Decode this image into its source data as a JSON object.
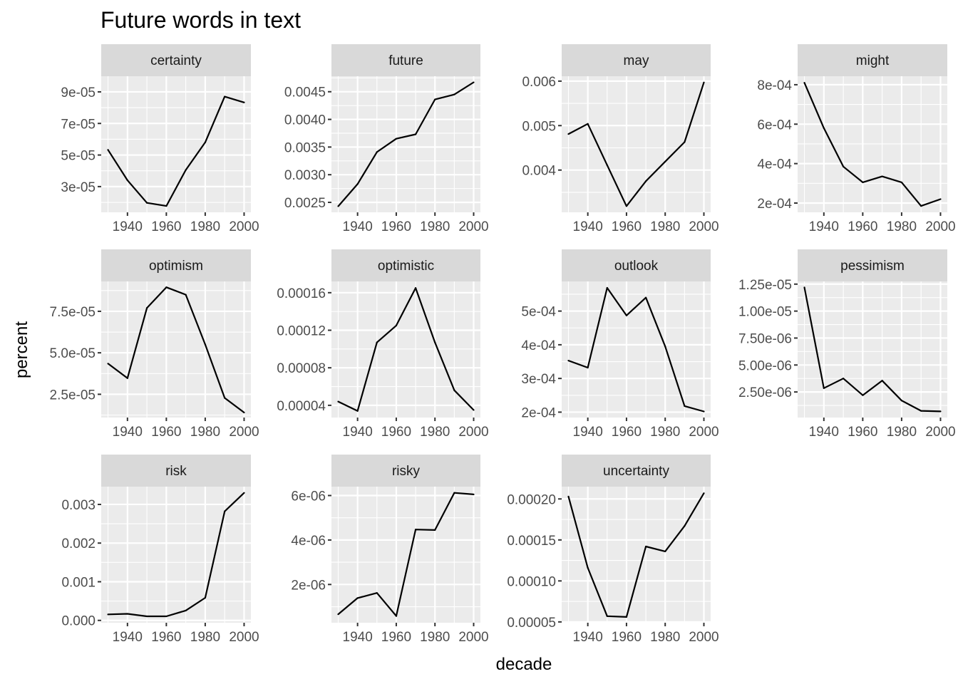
{
  "chart_data": {
    "type": "line",
    "title": "Future words in text",
    "xlabel": "decade",
    "ylabel": "percent",
    "x": [
      1930,
      1940,
      1950,
      1960,
      1970,
      1980,
      1990,
      2000
    ],
    "x_ticks": [
      1940,
      1960,
      1980,
      2000
    ],
    "x_tick_labels": [
      "1940",
      "1960",
      "1980",
      "2000"
    ],
    "xlim": [
      1926.5,
      2003.5
    ],
    "colors": {
      "panel_background": "#ebebeb",
      "grid": "#ffffff",
      "strip_background": "#d9d9d9",
      "line": "#000000",
      "tick_text": "#4d4d4d"
    },
    "facets": [
      {
        "label": "certainty",
        "values": [
          5.33e-05,
          3.4e-05,
          1.97e-05,
          1.77e-05,
          4.05e-05,
          5.8e-05,
          8.7e-05,
          8.33e-05
        ],
        "y_ticks": [
          3e-05,
          5e-05,
          7e-05,
          9e-05
        ],
        "y_tick_labels": [
          "3e-05",
          "5e-05",
          "7e-05",
          "9e-05"
        ],
        "ylim": [
          1.37e-05,
          9.99e-05
        ]
      },
      {
        "label": "future",
        "values": [
          0.00243,
          0.00283,
          0.00341,
          0.00365,
          0.00373,
          0.00436,
          0.00445,
          0.00467
        ],
        "y_ticks": [
          0.0025,
          0.003,
          0.0035,
          0.004,
          0.0045
        ],
        "y_tick_labels": [
          "0.0025",
          "0.0030",
          "0.0035",
          "0.0040",
          "0.0045"
        ],
        "ylim": [
          0.00232,
          0.00478
        ]
      },
      {
        "label": "may",
        "values": [
          0.00481,
          0.00504,
          0.00411,
          0.00319,
          0.00375,
          0.00419,
          0.00463,
          0.00597
        ],
        "y_ticks": [
          0.004,
          0.005,
          0.006
        ],
        "y_tick_labels": [
          "0.004",
          "0.005",
          "0.006"
        ],
        "ylim": [
          0.00305,
          0.00611
        ]
      },
      {
        "label": "might",
        "values": [
          0.00081,
          0.00058,
          0.000385,
          0.000305,
          0.000335,
          0.000305,
          0.000185,
          0.00022
        ],
        "y_ticks": [
          0.0002,
          0.0004,
          0.0006,
          0.0008
        ],
        "y_tick_labels": [
          "2e-04",
          "4e-04",
          "6e-04",
          "8e-04"
        ],
        "ylim": [
          0.000153,
          0.000843
        ]
      },
      {
        "label": "optimism",
        "values": [
          4.35e-05,
          3.47e-05,
          7.7e-05,
          8.95e-05,
          8.5e-05,
          5.5e-05,
          2.28e-05,
          1.4e-05
        ],
        "y_ticks": [
          2.5e-05,
          5e-05,
          7.5e-05
        ],
        "y_tick_labels": [
          "2.5e-05",
          "5.0e-05",
          "7.5e-05"
        ],
        "ylim": [
          1.1e-05,
          9.3e-05
        ]
      },
      {
        "label": "optimistic",
        "values": [
          4.4e-05,
          3.4e-05,
          0.000107,
          0.000125,
          0.000165,
          0.000107,
          5.6e-05,
          3.5e-05
        ],
        "y_ticks": [
          4e-05,
          8e-05,
          0.00012,
          0.00016
        ],
        "y_tick_labels": [
          "0.00004",
          "0.00008",
          "0.00012",
          "0.00016"
        ],
        "ylim": [
          2.7e-05,
          0.000172
        ]
      },
      {
        "label": "outlook",
        "values": [
          0.000353,
          0.000332,
          0.000569,
          0.000487,
          0.00054,
          0.000395,
          0.000218,
          0.000202
        ],
        "y_ticks": [
          0.0002,
          0.0003,
          0.0004,
          0.0005
        ],
        "y_tick_labels": [
          "2e-04",
          "3e-04",
          "4e-04",
          "5e-04"
        ],
        "ylim": [
          0.000184,
          0.000588
        ]
      },
      {
        "label": "pessimism",
        "values": [
          1.22e-05,
          2.85e-06,
          3.75e-06,
          2.2e-06,
          3.55e-06,
          1.7e-06,
          7.5e-07,
          7e-07
        ],
        "y_ticks": [
          2.5e-06,
          5e-06,
          7.5e-06,
          1e-05,
          1.25e-05
        ],
        "y_tick_labels": [
          "2.50e-06",
          "5.00e-06",
          "7.50e-06",
          "1.00e-05",
          "1.25e-05"
        ],
        "ylim": [
          1.3e-07,
          1.275e-05
        ]
      },
      {
        "label": "risk",
        "values": [
          0.000155,
          0.00017,
          0.000105,
          0.000105,
          0.000255,
          0.000585,
          0.00282,
          0.0033
        ],
        "y_ticks": [
          0,
          0.001,
          0.002,
          0.003
        ],
        "y_tick_labels": [
          "0.000",
          "0.001",
          "0.002",
          "0.003"
        ],
        "ylim": [
          -6e-05,
          0.00346
        ]
      },
      {
        "label": "risky",
        "values": [
          6.6e-07,
          1.39e-06,
          1.62e-06,
          5.8e-07,
          4.47e-06,
          4.45e-06,
          6.12e-06,
          6.05e-06
        ],
        "y_ticks": [
          2e-06,
          4e-06,
          6e-06
        ],
        "y_tick_labels": [
          "2e-06",
          "4e-06",
          "6e-06"
        ],
        "ylim": [
          2.8e-07,
          6.4e-06
        ]
      },
      {
        "label": "uncertainty",
        "values": [
          0.000203,
          0.000116,
          5.7e-05,
          5.6e-05,
          0.000142,
          0.000136,
          0.000167,
          0.000207
        ],
        "y_ticks": [
          5e-05,
          0.0001,
          0.00015,
          0.0002
        ],
        "y_tick_labels": [
          "0.00005",
          "0.00010",
          "0.00015",
          "0.00020"
        ],
        "ylim": [
          4.9e-05,
          0.000215
        ]
      }
    ]
  }
}
